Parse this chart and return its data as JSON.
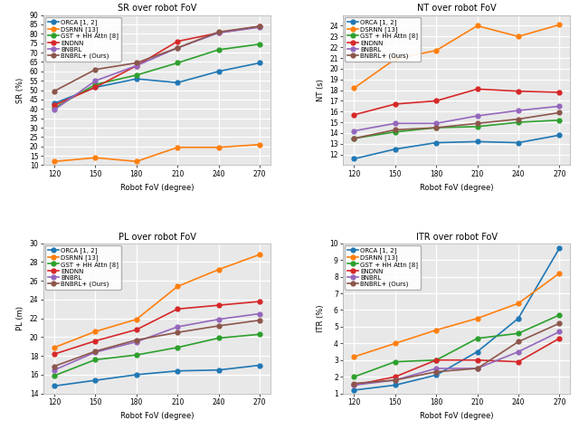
{
  "x": [
    120,
    150,
    180,
    210,
    240,
    270
  ],
  "colors": {
    "ORCA": "#1f77b4",
    "DSRNN": "#ff7f0e",
    "GST": "#2ca02c",
    "ENDNN": "#d62728",
    "BNBRL": "#9467bd",
    "BNBRL+": "#8c564b"
  },
  "labels": [
    "ORCA [1, 2]",
    "DSRNN [13]",
    "GST + HH Attn [8]",
    "ENDNN",
    "BNBRL",
    "BNBRL+ (Ours)"
  ],
  "SR": {
    "ORCA": [
      43.0,
      51.5,
      56.0,
      54.0,
      60.0,
      64.5
    ],
    "DSRNN": [
      12.0,
      14.0,
      12.0,
      19.5,
      19.5,
      21.0
    ],
    "GST": [
      40.5,
      53.0,
      58.0,
      64.5,
      71.5,
      74.5
    ],
    "ENDNN": [
      42.0,
      51.5,
      63.0,
      76.0,
      80.5,
      84.0
    ],
    "BNBRL": [
      39.5,
      55.0,
      63.0,
      72.5,
      80.5,
      83.5
    ],
    "BNBRL+": [
      49.5,
      61.0,
      64.5,
      72.5,
      81.0,
      84.0
    ]
  },
  "SR_ylabel": "SR (%)",
  "SR_title": "SR over robot FoV",
  "SR_ylim": [
    10,
    90
  ],
  "SR_yticks": [
    10,
    15,
    20,
    25,
    30,
    35,
    40,
    45,
    50,
    55,
    60,
    65,
    70,
    75,
    80,
    85,
    90
  ],
  "NT": {
    "ORCA": [
      11.6,
      12.5,
      13.1,
      13.2,
      13.1,
      13.8
    ],
    "DSRNN": [
      18.2,
      20.9,
      21.7,
      24.0,
      23.0,
      24.1
    ],
    "GST": [
      13.5,
      14.1,
      14.5,
      14.6,
      15.0,
      15.2
    ],
    "ENDNN": [
      15.7,
      16.7,
      17.0,
      18.1,
      17.9,
      17.8
    ],
    "BNBRL": [
      14.2,
      14.9,
      14.9,
      15.6,
      16.1,
      16.5
    ],
    "BNBRL+": [
      13.5,
      14.3,
      14.5,
      14.9,
      15.3,
      15.9
    ]
  },
  "NT_ylabel": "NT (s)",
  "NT_title": "NT over robot FoV",
  "NT_ylim": [
    11,
    25
  ],
  "NT_yticks": [
    12,
    13,
    14,
    15,
    16,
    17,
    18,
    19,
    20,
    21,
    22,
    23,
    24
  ],
  "PL": {
    "ORCA": [
      14.8,
      15.4,
      16.0,
      16.4,
      16.5,
      17.0
    ],
    "DSRNN": [
      18.9,
      20.6,
      21.9,
      25.4,
      27.2,
      28.8
    ],
    "GST": [
      15.9,
      17.6,
      18.1,
      18.9,
      19.9,
      20.3
    ],
    "ENDNN": [
      18.2,
      19.6,
      20.8,
      23.0,
      23.4,
      23.8
    ],
    "BNBRL": [
      16.5,
      18.4,
      19.5,
      21.1,
      21.9,
      22.5
    ],
    "BNBRL+": [
      16.9,
      18.5,
      19.7,
      20.5,
      21.2,
      21.8
    ]
  },
  "PL_ylabel": "PL (m)",
  "PL_title": "PL over robot FoV",
  "PL_ylim": [
    14,
    30
  ],
  "PL_yticks": [
    14,
    16,
    18,
    20,
    22,
    24,
    26,
    28,
    30
  ],
  "ITR": {
    "ORCA": [
      1.2,
      1.5,
      2.1,
      3.5,
      5.5,
      9.7
    ],
    "DSRNN": [
      3.2,
      4.0,
      4.8,
      5.5,
      6.4,
      8.2
    ],
    "GST": [
      2.0,
      2.9,
      3.0,
      4.3,
      4.6,
      5.7
    ],
    "ENDNN": [
      1.5,
      2.0,
      3.0,
      3.0,
      2.9,
      4.3
    ],
    "BNBRL": [
      1.5,
      1.8,
      2.5,
      2.5,
      3.5,
      4.7
    ],
    "BNBRL+": [
      1.6,
      1.8,
      2.3,
      2.5,
      4.1,
      5.2
    ]
  },
  "ITR_ylabel": "ITR (%)",
  "ITR_title": "ITR over robot FoV",
  "ITR_ylim": [
    1,
    10
  ],
  "ITR_yticks": [
    1,
    2,
    3,
    4,
    5,
    6,
    7,
    8,
    9,
    10
  ],
  "xlabel": "Robot FoV (degree)",
  "bg_color": "#ffffff",
  "plot_bg_color": "#e8e8e8",
  "grid_color": "#ffffff",
  "marker": "o",
  "linewidth": 1.2,
  "markersize": 3.5
}
